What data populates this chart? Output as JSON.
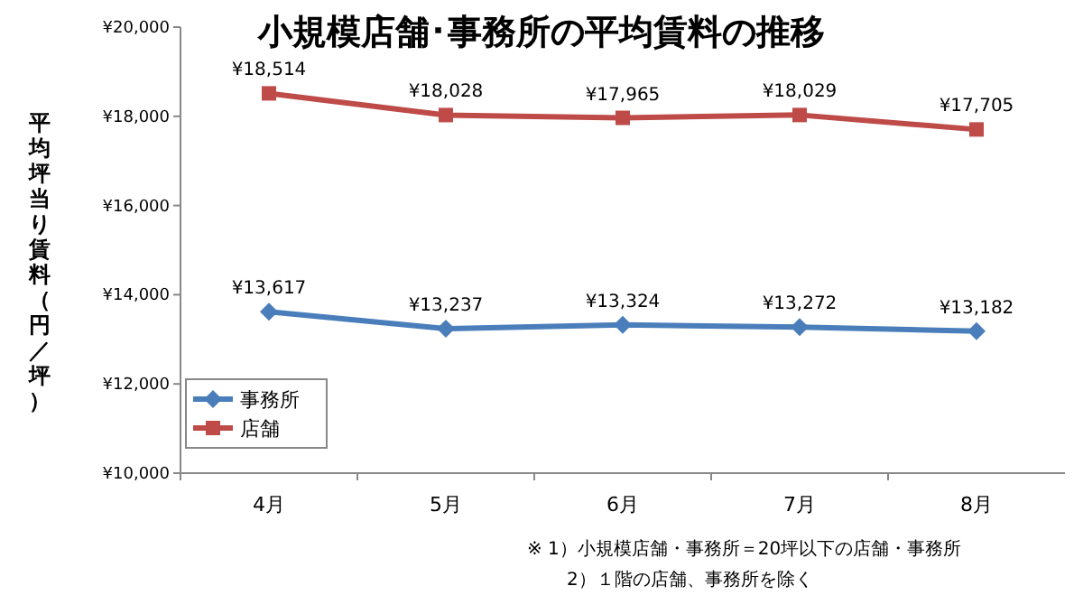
{
  "chart_data": {
    "type": "line",
    "title": "小規模店舗･事務所の平均賃料の推移",
    "ylabel": "平均坪当り賃料（円／坪）",
    "categories": [
      "4月",
      "5月",
      "6月",
      "7月",
      "8月"
    ],
    "series": [
      {
        "name": "事務所",
        "color": "#4a7ebb",
        "marker": "diamond",
        "values": [
          13617,
          13237,
          13324,
          13272,
          13182
        ],
        "value_labels": [
          "¥13,617",
          "¥13,237",
          "¥13,324",
          "¥13,272",
          "¥13,182"
        ]
      },
      {
        "name": "店舗",
        "color": "#be4b48",
        "marker": "square",
        "values": [
          18514,
          18028,
          17965,
          18029,
          17705
        ],
        "value_labels": [
          "¥18,514",
          "¥18,028",
          "¥17,965",
          "¥18,029",
          "¥17,705"
        ]
      }
    ],
    "ylim": [
      10000,
      20000
    ],
    "yticks": [
      {
        "value": 10000,
        "label": "¥10,000"
      },
      {
        "value": 12000,
        "label": "¥12,000"
      },
      {
        "value": 14000,
        "label": "¥14,000"
      },
      {
        "value": 16000,
        "label": "¥16,000"
      },
      {
        "value": 18000,
        "label": "¥18,000"
      },
      {
        "value": 20000,
        "label": "¥20,000"
      }
    ],
    "legend": "bottom left",
    "line_style": "solid",
    "annotations": [
      "※ 1）小規模店舗・事務所＝20坪以下の店舗・事務所",
      "2）１階の店舗、事務所を除く"
    ]
  }
}
